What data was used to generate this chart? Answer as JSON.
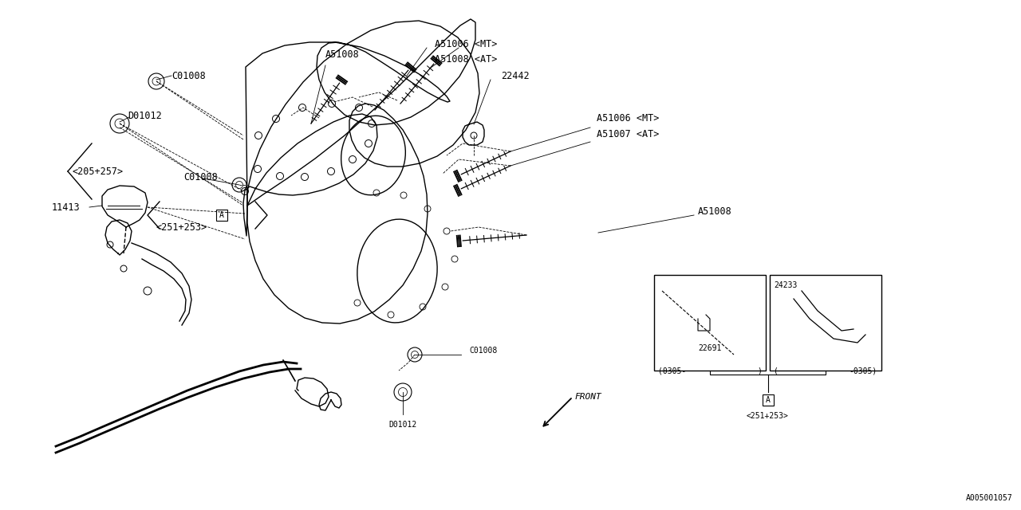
{
  "bg_color": "#ffffff",
  "line_color": "#000000",
  "fig_width": 12.8,
  "fig_height": 6.4,
  "watermark": "A005001057",
  "box1_label": "22691",
  "box1_sub": "(0305-         )",
  "box2_label": "24233",
  "box2_sub": "(         -0305)",
  "A_label": "A",
  "A_sub": "<251+253>"
}
